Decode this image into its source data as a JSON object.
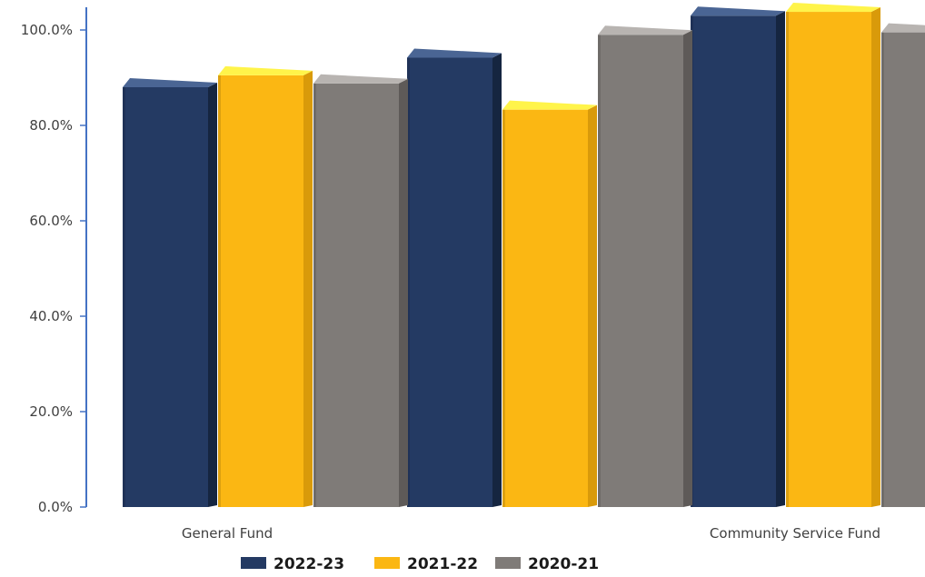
{
  "chart_data": {
    "type": "bar",
    "categories": [
      "General Fund",
      "",
      "Community Service Fund"
    ],
    "series": [
      {
        "name": "2022-23",
        "values": [
          88.0,
          94.2,
          103.0
        ],
        "color": "#243a63",
        "top_color": "#4a6594",
        "side_color": "#152540"
      },
      {
        "name": "2021-22",
        "values": [
          90.5,
          83.3,
          103.8
        ],
        "color": "#fbb713",
        "top_color": "#fff44a",
        "side_color": "#d99a0a"
      },
      {
        "name": "2020-21",
        "values": [
          88.8,
          99.0,
          99.5
        ],
        "color": "#7f7b78",
        "top_color": "#b8b4b1",
        "side_color": "#5e5a58"
      }
    ],
    "yticks": [
      "0.0%",
      "20.0%",
      "40.0%",
      "60.0%",
      "80.0%",
      "100.0%"
    ],
    "ylim": [
      0,
      105
    ],
    "legend_position": "bottom",
    "axis_color": "#4472c4"
  }
}
